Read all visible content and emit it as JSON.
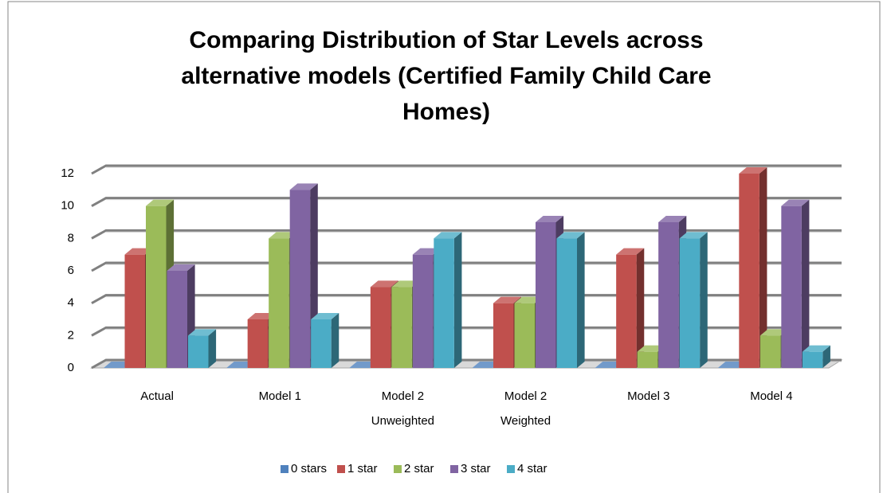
{
  "chart_data": {
    "type": "bar3d",
    "title": [
      "Comparing Distribution of Star Levels across",
      "alternative models (Certified Family Child Care",
      "Homes)"
    ],
    "categories": [
      "Actual",
      "Model 1",
      "Model 2 Unweighted",
      "Model 2 Weighted",
      "Model 3",
      "Model 4"
    ],
    "series": [
      {
        "name": "0 stars",
        "color": "#4f81bd",
        "values": [
          0,
          0,
          0,
          0,
          0,
          0
        ]
      },
      {
        "name": "1 star",
        "color": "#c0504d",
        "values": [
          7,
          3,
          5,
          4,
          7,
          12
        ]
      },
      {
        "name": "2 star",
        "color": "#9bbb59",
        "values": [
          10,
          8,
          5,
          4,
          1,
          2
        ]
      },
      {
        "name": "3 star",
        "color": "#8064a2",
        "values": [
          6,
          11,
          7,
          9,
          9,
          10
        ]
      },
      {
        "name": "4 star",
        "color": "#4bacc6",
        "values": [
          2,
          3,
          8,
          8,
          8,
          1
        ]
      }
    ],
    "ylim": [
      0,
      12
    ],
    "yticks": [
      0,
      2,
      4,
      6,
      8,
      10,
      12
    ],
    "grid": true,
    "legend": "bottom"
  }
}
